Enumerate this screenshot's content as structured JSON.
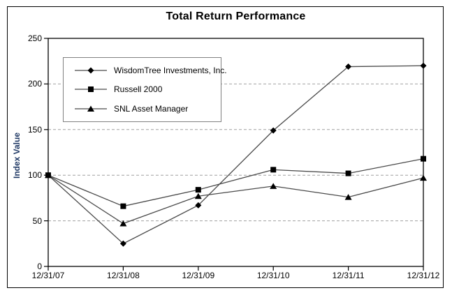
{
  "chart_data": {
    "type": "line",
    "title": "Total Return Performance",
    "xlabel": "",
    "ylabel": "Index Value",
    "x_categories": [
      "12/31/07",
      "12/31/08",
      "12/31/09",
      "12/31/10",
      "12/31/11",
      "12/31/12"
    ],
    "ylim": [
      0,
      250
    ],
    "yticks": [
      0,
      50,
      100,
      150,
      200,
      250
    ],
    "grid": "horizontal-dashed",
    "legend_position": "top-left-inside",
    "series": [
      {
        "name": "WisdomTree Investments, Inc.",
        "marker": "diamond",
        "values": [
          100,
          25,
          67,
          149,
          219,
          220
        ]
      },
      {
        "name": "Russell 2000",
        "marker": "square",
        "values": [
          100,
          66,
          84,
          106,
          102,
          118
        ]
      },
      {
        "name": "SNL Asset Manager",
        "marker": "triangle",
        "values": [
          100,
          47,
          77,
          88,
          76,
          97
        ]
      }
    ]
  },
  "colors": {
    "series_line": "#4a4a4a",
    "marker_fill": "#000000",
    "gridline": "#a0a0a0",
    "axis": "#000000",
    "ylabel_text": "#1f3864",
    "legend_border": "#808080",
    "frame_border": "#000000",
    "background": "#ffffff"
  }
}
